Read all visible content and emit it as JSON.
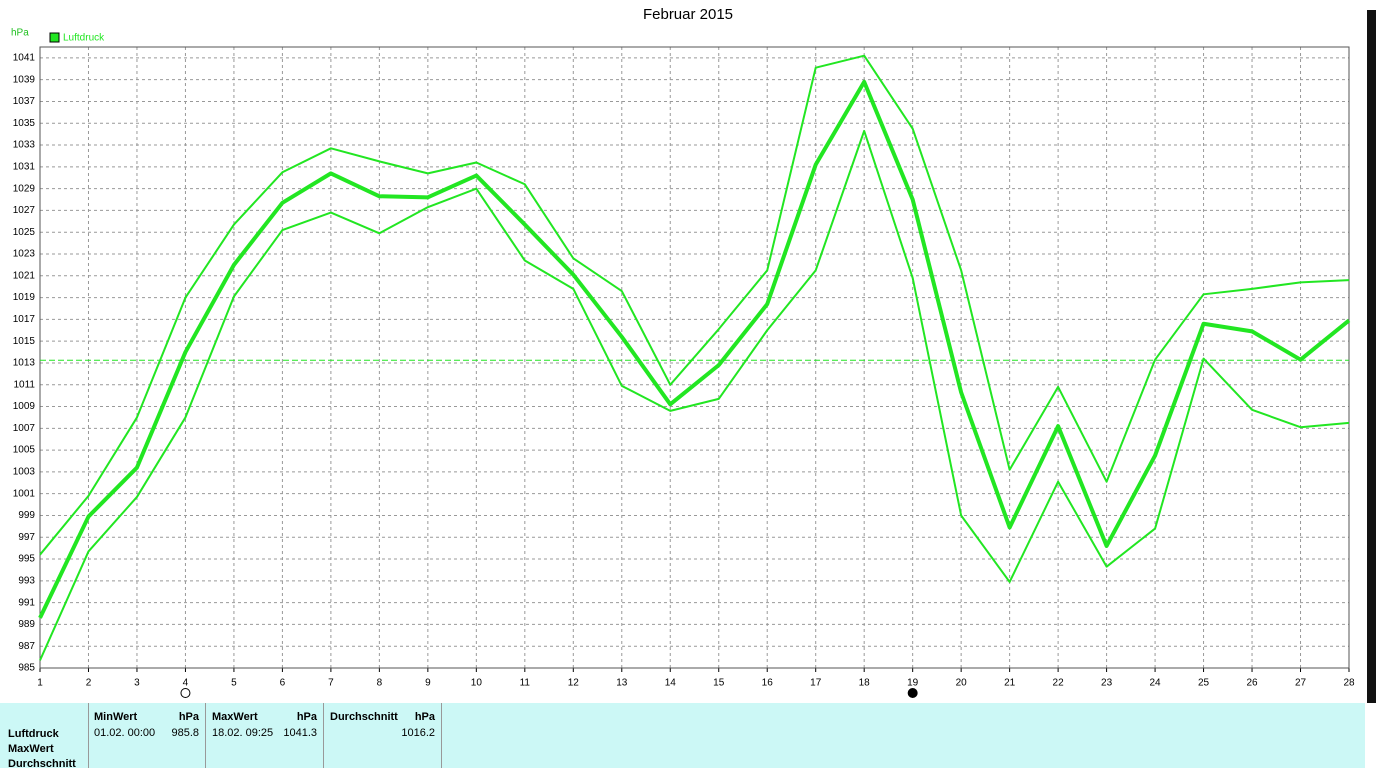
{
  "chart_data": {
    "type": "line",
    "title": "Februar 2015",
    "y_unit": "hPa",
    "x": [
      1,
      2,
      3,
      4,
      5,
      6,
      7,
      8,
      9,
      10,
      11,
      12,
      13,
      14,
      15,
      16,
      17,
      18,
      19,
      20,
      21,
      22,
      23,
      24,
      25,
      26,
      27,
      28
    ],
    "series": [
      {
        "name": "Luftdruck",
        "color": "#22e622",
        "values": [
          989.6,
          998.9,
          1003.4,
          1014.0,
          1022.0,
          1027.7,
          1030.4,
          1028.3,
          1028.2,
          1030.2,
          1025.7,
          1021.1,
          1015.4,
          1009.2,
          1012.8,
          1018.4,
          1031.2,
          1038.8,
          1028.0,
          1010.3,
          997.9,
          1007.2,
          996.2,
          1004.5,
          1016.6,
          1015.9,
          1013.3,
          1016.9
        ],
        "max": [
          995.4,
          1000.8,
          1008.0,
          1019.0,
          1025.7,
          1030.5,
          1032.7,
          1031.5,
          1030.4,
          1031.4,
          1029.4,
          1022.6,
          1019.6,
          1011.0,
          1016.1,
          1021.5,
          1040.1,
          1041.2,
          1034.5,
          1021.5,
          1003.2,
          1010.8,
          1002.1,
          1013.3,
          1019.3,
          1019.8,
          1020.4,
          1020.6
        ],
        "min": [
          985.7,
          995.7,
          1000.7,
          1008.0,
          1019.1,
          1025.2,
          1026.8,
          1024.9,
          1027.3,
          1029.0,
          1022.4,
          1019.8,
          1010.9,
          1008.6,
          1009.7,
          1016.0,
          1021.5,
          1034.3,
          1020.8,
          999.0,
          992.9,
          1002.1,
          994.3,
          997.8,
          1013.4,
          1008.7,
          1007.1,
          1007.5
        ]
      }
    ],
    "reference_line": 1013.25,
    "markers": [
      {
        "x": 4,
        "kind": "open"
      },
      {
        "x": 19,
        "kind": "filled"
      }
    ],
    "xlim": [
      1,
      28
    ],
    "xticks": [
      1,
      2,
      3,
      4,
      5,
      6,
      7,
      8,
      9,
      10,
      11,
      12,
      13,
      14,
      15,
      16,
      17,
      18,
      19,
      20,
      21,
      22,
      23,
      24,
      25,
      26,
      27,
      28
    ],
    "ylim": [
      985,
      1042
    ],
    "yticks": [
      985,
      987,
      989,
      991,
      993,
      995,
      997,
      999,
      1001,
      1003,
      1005,
      1007,
      1009,
      1011,
      1013,
      1015,
      1017,
      1019,
      1021,
      1023,
      1025,
      1027,
      1029,
      1031,
      1033,
      1035,
      1037,
      1039,
      1041
    ],
    "grid": true
  },
  "table": {
    "row_labels": [
      "Luftdruck",
      "MaxWert",
      "Durchschnitt"
    ],
    "columns": [
      {
        "header": "MinWert",
        "unit": "hPa",
        "time": "01.02. 00:00",
        "value": "985.8"
      },
      {
        "header": "MaxWert",
        "unit": "hPa",
        "time": "18.02. 09:25",
        "value": "1041.3"
      },
      {
        "header": "Durchschnitt",
        "unit": "hPa",
        "time": "",
        "value": "1016.2"
      }
    ]
  }
}
